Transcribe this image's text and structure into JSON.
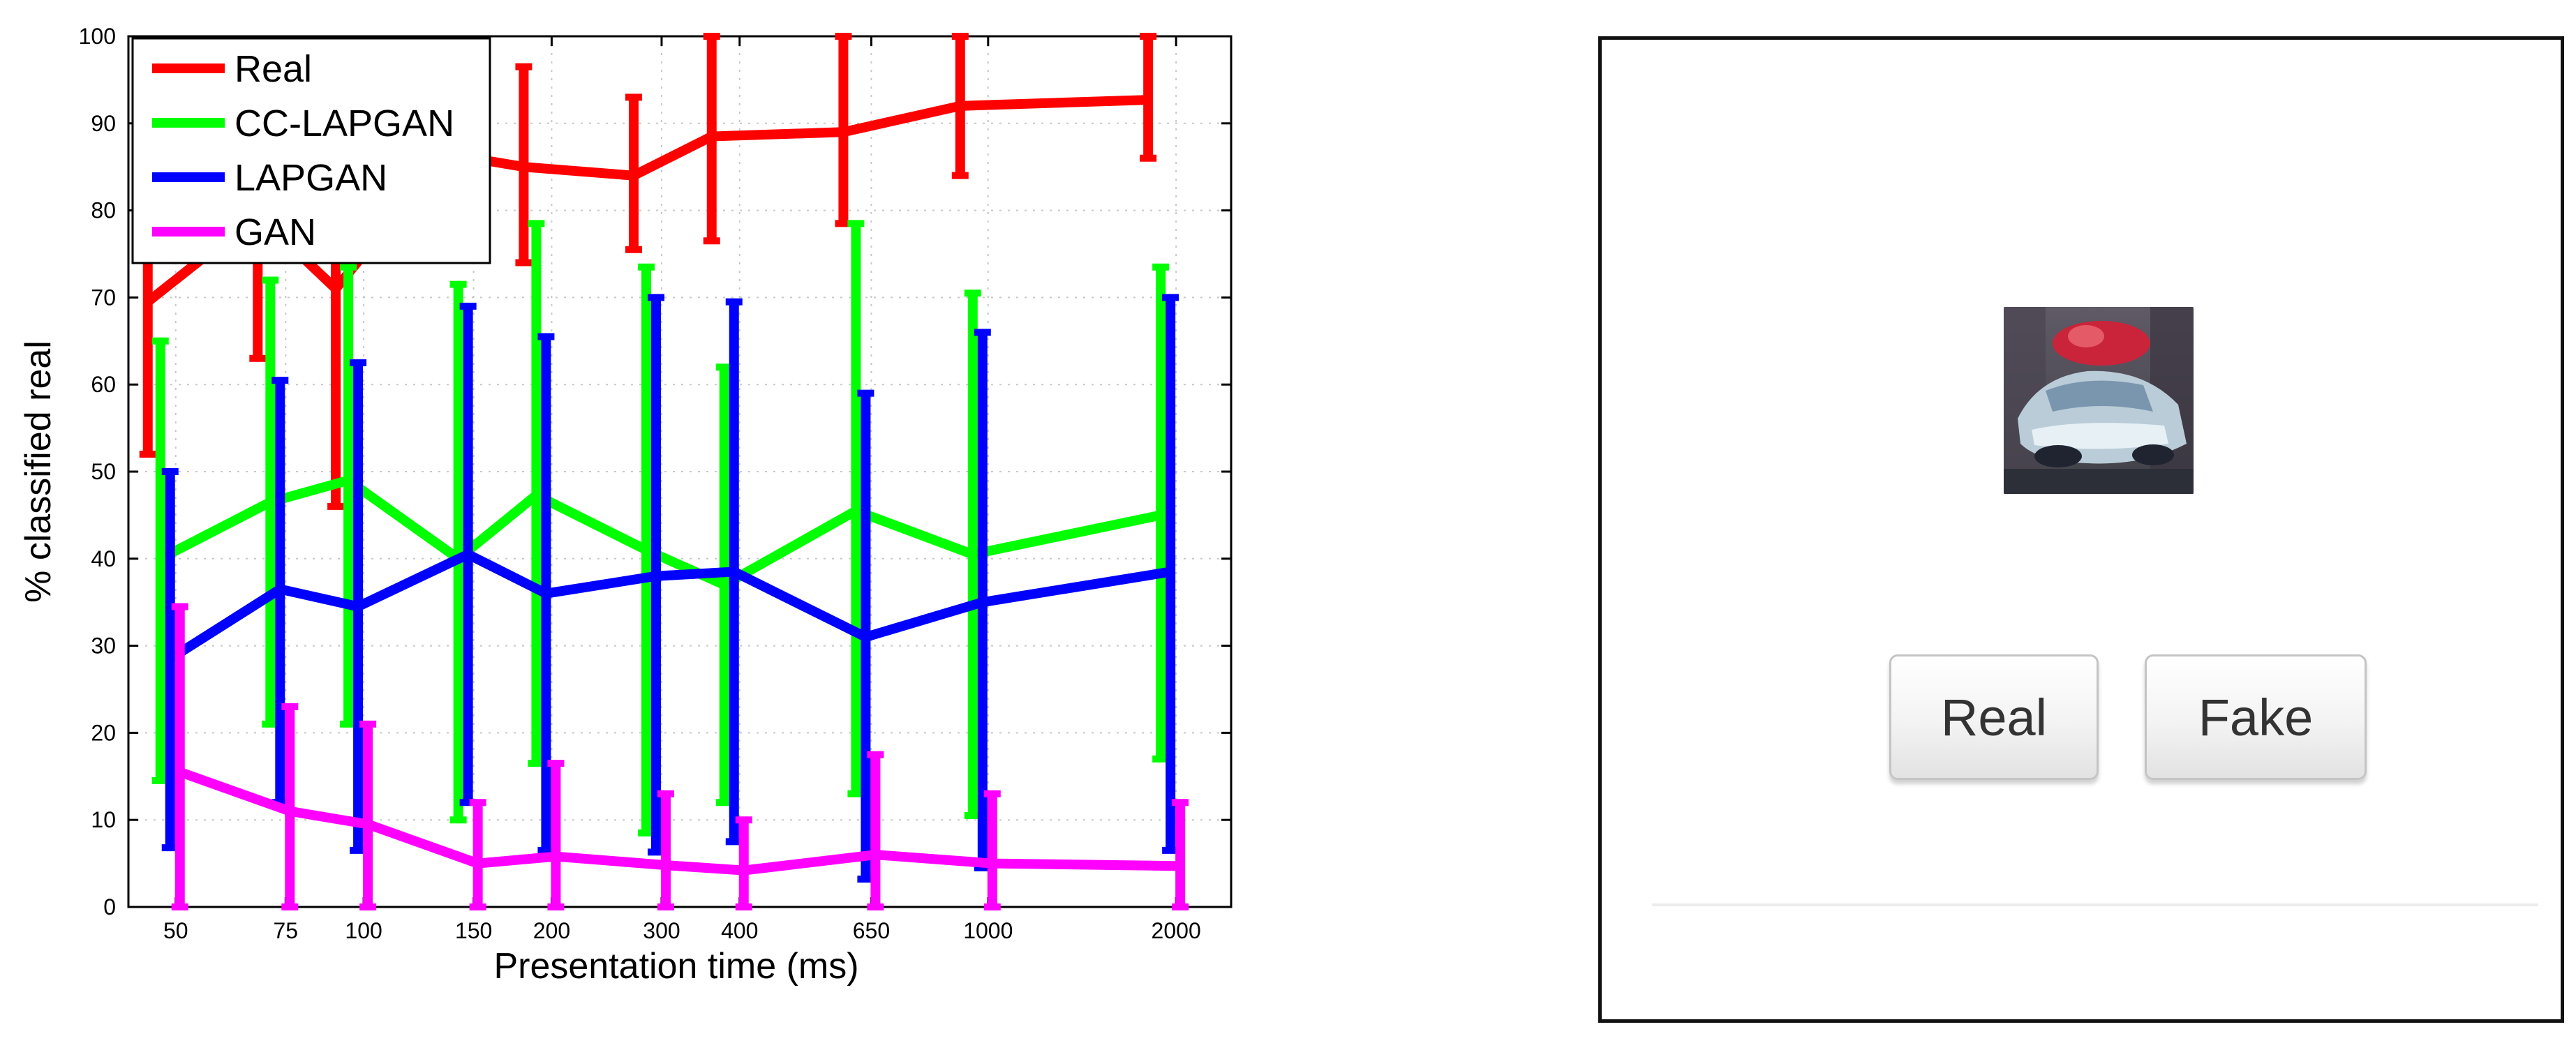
{
  "chart_data": {
    "type": "line",
    "title": "",
    "xlabel": "Presentation time (ms)",
    "ylabel": "% classified real",
    "x_scale": "log",
    "x_ticks": [
      50,
      75,
      100,
      150,
      200,
      300,
      400,
      650,
      1000,
      2000
    ],
    "x_tick_labels": [
      "50",
      "75",
      "100",
      "150",
      "200",
      "300",
      "400",
      "650",
      "1000",
      "2000"
    ],
    "y_ticks": [
      0,
      10,
      20,
      30,
      40,
      50,
      60,
      70,
      80,
      90,
      100
    ],
    "ylim": [
      0,
      100
    ],
    "grid": true,
    "legend": "top-left",
    "series": [
      {
        "name": "Real",
        "color": "#ff0000",
        "values": [
          69.5,
          79.5,
          71.0,
          86.5,
          85.0,
          84.0,
          88.5,
          89.0,
          92.0,
          92.7
        ],
        "err_low": [
          52,
          63,
          46,
          76,
          74,
          75.5,
          76.5,
          78.5,
          84,
          86
        ],
        "err_high": [
          87,
          96,
          96,
          97,
          96.5,
          93,
          100,
          100,
          100,
          100
        ]
      },
      {
        "name": "CC-LAPGAN",
        "color": "#00ff00",
        "values": [
          40,
          46.5,
          49,
          40,
          47.3,
          41,
          37,
          45.5,
          40.5,
          45
        ],
        "err_low": [
          14.5,
          21,
          21,
          10,
          16.5,
          8.5,
          12,
          13,
          10.5,
          17
        ],
        "err_high": [
          65,
          72,
          73.5,
          71.5,
          78.5,
          73.5,
          62,
          78.5,
          70.5,
          73.5
        ]
      },
      {
        "name": "LAPGAN",
        "color": "#0000ff",
        "values": [
          28.5,
          36.5,
          34.5,
          40.5,
          36,
          38,
          38.5,
          31,
          35,
          38.5
        ],
        "err_low": [
          6.8,
          12,
          6.5,
          12,
          6.5,
          6.3,
          7.5,
          3.2,
          4.5,
          6.5
        ],
        "err_high": [
          50,
          60.5,
          62.5,
          69,
          65.5,
          70,
          69.5,
          59,
          66,
          70
        ]
      },
      {
        "name": "GAN",
        "color": "#ff00ff",
        "values": [
          15.5,
          11,
          9.5,
          5,
          5.8,
          4.8,
          4.2,
          6,
          5,
          4.7
        ],
        "err_low": [
          0,
          0,
          0,
          0,
          0,
          0,
          0,
          0,
          0,
          0
        ],
        "err_high": [
          34.5,
          23,
          21,
          12,
          16.5,
          13,
          10,
          17.5,
          13,
          12
        ]
      }
    ]
  },
  "ui": {
    "real_button": "Real",
    "fake_button": "Fake"
  }
}
